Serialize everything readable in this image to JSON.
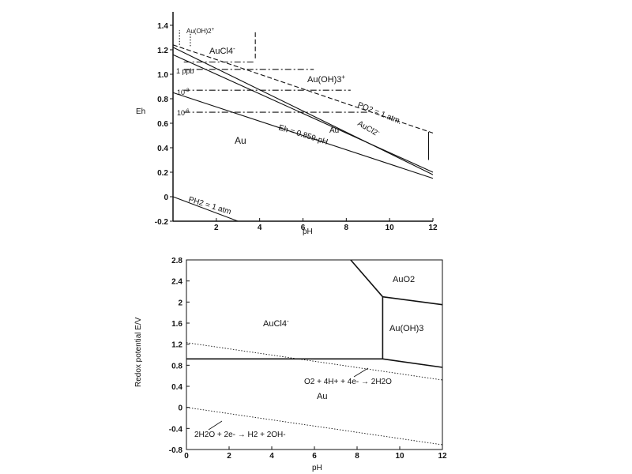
{
  "chart_data": [
    {
      "type": "line",
      "xlabel": "pH",
      "ylabel": "Eh",
      "xlim": [
        0,
        12
      ],
      "ylim": [
        -0.2,
        1.4
      ],
      "xticks": [
        "2",
        "4",
        "6",
        "8",
        "10",
        "12"
      ],
      "yticks": [
        "-0.2",
        "0",
        "0.2",
        "0.4",
        "0.6",
        "0.8",
        "1.0",
        "1.2",
        "1.4"
      ],
      "series": [
        {
          "name": "Eh = 0.859 - pH",
          "style": "solid",
          "x": [
            0,
            12
          ],
          "y": [
            0.85,
            0.15
          ]
        },
        {
          "name": "Au/AuCl2-",
          "style": "solid",
          "x": [
            0,
            12
          ],
          "y": [
            1.22,
            0.18
          ]
        },
        {
          "name": "",
          "style": "solid",
          "x": [
            0,
            12
          ],
          "y": [
            1.16,
            0.2
          ]
        },
        {
          "name": "PO2 = 1 atm.",
          "style": "dashed",
          "x": [
            0,
            12
          ],
          "y": [
            1.24,
            0.52
          ]
        },
        {
          "name": "PH2 = 1 atm",
          "style": "solid",
          "x": [
            0,
            3
          ],
          "y": [
            0,
            -0.2
          ]
        }
      ],
      "horizontal_lines": [
        {
          "name": "1 ppb",
          "style": "dashdot",
          "y": 1.04,
          "x": [
            0.5,
            6.5
          ]
        },
        {
          "name": "",
          "style": "dashdot",
          "y": 1.1,
          "x": [
            0.5,
            3.8
          ]
        },
        {
          "name": "10-3",
          "style": "dashdot",
          "y": 0.87,
          "x": [
            0.5,
            8.2
          ]
        },
        {
          "name": "10-6",
          "style": "dashdot",
          "y": 0.69,
          "x": [
            0.5,
            9.0
          ]
        }
      ],
      "vertical_lines": [
        {
          "style": "dashed",
          "x": 3.8,
          "y": [
            1.13,
            1.36
          ]
        },
        {
          "style": "dotted",
          "x": 0.3,
          "y": [
            1.24,
            1.36
          ]
        },
        {
          "style": "dotted",
          "x": 0.8,
          "y": [
            1.23,
            1.34
          ]
        },
        {
          "style": "solid",
          "x": 11.8,
          "y": [
            0.3,
            0.53
          ]
        }
      ],
      "annotations": [
        "Au(OH)2+",
        "AuCl4-",
        "1 ppb",
        "10-3",
        "10-6",
        "Au(OH)3+",
        "PO2 = 1 atm.",
        "AuCl2-",
        "Au",
        "Eh = 0.859-pH",
        "Au",
        "PH2 = 1 atm"
      ]
    },
    {
      "type": "line",
      "xlabel": "pH",
      "ylabel": "Redox potential E/V",
      "xlim": [
        0,
        12
      ],
      "ylim": [
        -0.8,
        2.8
      ],
      "xticks": [
        "0",
        "2",
        "4",
        "6",
        "8",
        "10",
        "12"
      ],
      "yticks": [
        "-0.8",
        "-0.4",
        "0",
        "0.4",
        "0.8",
        "1.2",
        "1.6",
        "2",
        "2.4",
        "2.8"
      ],
      "series": [
        {
          "name": "AuCl4-/Au",
          "style": "solid",
          "x": [
            0,
            9.2
          ],
          "y": [
            0.92,
            0.92
          ]
        },
        {
          "name": "",
          "style": "solid",
          "x": [
            7.7,
            9.2
          ],
          "y": [
            2.8,
            2.1
          ]
        },
        {
          "name": "",
          "style": "solid",
          "x": [
            9.2,
            9.2
          ],
          "y": [
            0.92,
            2.1
          ]
        },
        {
          "name": "",
          "style": "solid",
          "x": [
            9.2,
            12
          ],
          "y": [
            2.1,
            1.95
          ]
        },
        {
          "name": "",
          "style": "solid",
          "x": [
            9.2,
            12
          ],
          "y": [
            0.92,
            0.76
          ]
        },
        {
          "name": "O2 + 4H+ + 4e- -> 2H2O",
          "style": "dotted",
          "x": [
            0,
            12
          ],
          "y": [
            1.23,
            0.52
          ]
        },
        {
          "name": "2H2O + 2e- -> H2 + 2OH-",
          "style": "dotted",
          "x": [
            0,
            12
          ],
          "y": [
            0,
            -0.71
          ]
        }
      ],
      "annotations": [
        "AuO2",
        "AuCl4-",
        "Au(OH)3",
        "Au",
        "O2 + 4H+ + 4e- -> 2H2O",
        "2H2O + 2e- -> H2 + 2OH-"
      ]
    }
  ],
  "labels": {
    "top_xlabel": "pH",
    "top_ylabel": "Eh",
    "top_auoh2": "Au(OH)2",
    "top_auoh2_sup": "+",
    "top_aucl4": "AuCl4",
    "top_aucl4_sup": "-",
    "top_1ppb": "1 ppb",
    "top_10_3": "10",
    "top_10_3_sup": "-3",
    "top_10_6": "10",
    "top_10_6_sup": "-6",
    "top_auoh3": "Au(OH)3",
    "top_auoh3_sup": "+",
    "top_po2": "PO2 = 1 atm.",
    "top_aucl2": "AuCl2",
    "top_aucl2_sup": "-",
    "top_au_small": "Au",
    "top_eh_line": "Eh = 0.859-pH",
    "top_au_big": "Au",
    "top_ph2": "PH2 = 1 atm",
    "bot_xlabel": "pH",
    "bot_ylabel": "Redox potential E/V",
    "bot_auo2": "AuO2",
    "bot_aucl4": "AuCl4",
    "bot_aucl4_sup": "-",
    "bot_auoh3": "Au(OH)3",
    "bot_au": "Au",
    "bot_o2_eq": "O2 + 4H+ + 4e- → 2H2O",
    "bot_h2_eq": "2H2O + 2e- → H2 + 2OH-"
  }
}
